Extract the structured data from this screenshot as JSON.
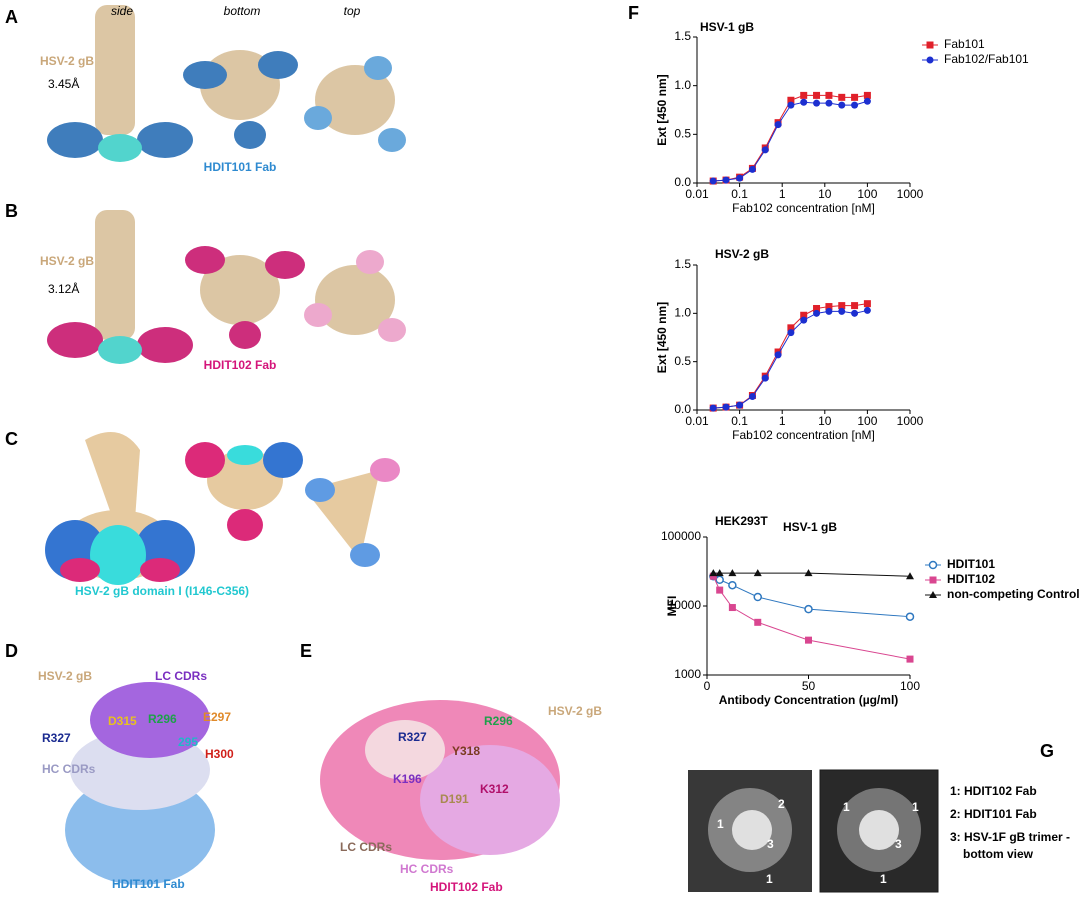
{
  "panels": {
    "A": {
      "label": "A",
      "views": [
        "side",
        "bottom",
        "top"
      ],
      "protein": "HSV-2 gB",
      "resolution": "3.45Å",
      "fab": "HDIT101 Fab"
    },
    "B": {
      "label": "B",
      "protein": "HSV-2 gB",
      "resolution": "3.12Å",
      "fab": "HDIT102 Fab"
    },
    "C": {
      "label": "C",
      "domain": "HSV-2 gB domain I (I146-C356)"
    },
    "D": {
      "label": "D",
      "texts": [
        "HSV-2 gB",
        "LC CDRs",
        "R296",
        "E297",
        "R327",
        "D315",
        "H300",
        "HC CDRs",
        "295",
        "HDIT101 Fab"
      ]
    },
    "E": {
      "label": "E",
      "texts": [
        "R296",
        "HSV-2 gB",
        "R327",
        "Y318",
        "K196",
        "K312",
        "D191",
        "LC CDRs",
        "HC CDRs",
        "HDIT102 Fab"
      ]
    },
    "F": {
      "label": "F"
    },
    "G": {
      "label": "G",
      "image1": [
        "1",
        "2",
        "3",
        "1"
      ],
      "image2": [
        "1",
        "1",
        "3",
        "1"
      ],
      "legend": [
        "1: HDIT102 Fab",
        "2: HDIT101 Fab",
        "3: HSV-1F gB trimer -",
        "bottom view"
      ]
    }
  },
  "chart_data": [
    {
      "type": "line",
      "title": "HSV-1 gB",
      "x_label": "Fab102 concentration [nM]",
      "y_label": "Ext [450 nm]",
      "xlog": true,
      "x": [
        0.024,
        0.048,
        0.1,
        0.2,
        0.4,
        0.8,
        1.6,
        3.2,
        6.4,
        12.5,
        25,
        50,
        100
      ],
      "series": [
        {
          "name": "Fab101",
          "color": "#e0202a",
          "marker": "square",
          "values": [
            0.02,
            0.03,
            0.06,
            0.15,
            0.36,
            0.62,
            0.85,
            0.9,
            0.9,
            0.9,
            0.88,
            0.88,
            0.9
          ]
        },
        {
          "name": "Fab102/Fab101",
          "color": "#1c2fd0",
          "marker": "circle",
          "values": [
            0.02,
            0.03,
            0.05,
            0.14,
            0.34,
            0.6,
            0.8,
            0.83,
            0.82,
            0.82,
            0.8,
            0.8,
            0.84
          ]
        }
      ],
      "xlim": [
        0.01,
        1000
      ],
      "xticks": [
        0.01,
        0.1,
        1,
        10,
        100,
        1000
      ],
      "ylim": [
        0,
        1.5
      ],
      "yticks": [
        {
          "value": 0,
          "label": "0.0"
        },
        0.5,
        {
          "value": 1,
          "label": "1.0"
        },
        1.5
      ]
    },
    {
      "type": "line",
      "title": "HSV-2 gB",
      "x_label": "Fab102 concentration [nM]",
      "y_label": "Ext [450 nm]",
      "xlog": true,
      "x": [
        0.024,
        0.048,
        0.1,
        0.2,
        0.4,
        0.8,
        1.6,
        3.2,
        6.4,
        12.5,
        25,
        50,
        100
      ],
      "series": [
        {
          "name": "Fab101",
          "color": "#e0202a",
          "marker": "square",
          "values": [
            0.02,
            0.03,
            0.05,
            0.15,
            0.35,
            0.6,
            0.85,
            0.98,
            1.05,
            1.07,
            1.08,
            1.08,
            1.1
          ]
        },
        {
          "name": "Fab102/Fab101",
          "color": "#1c2fd0",
          "marker": "circle",
          "values": [
            0.02,
            0.03,
            0.05,
            0.14,
            0.33,
            0.57,
            0.8,
            0.93,
            1.0,
            1.02,
            1.02,
            1.0,
            1.03
          ]
        }
      ],
      "xlim": [
        0.01,
        1000
      ],
      "xticks": [
        0.01,
        0.1,
        1,
        10,
        100,
        1000
      ],
      "ylim": [
        0,
        1.5
      ],
      "yticks": [
        {
          "value": 0,
          "label": "0.0"
        },
        0.5,
        {
          "value": 1,
          "label": "1.0"
        },
        1.5
      ]
    },
    {
      "type": "line",
      "title": "HEK293T",
      "subtitle": "HSV-1 gB",
      "x_label": "Antibody Concentration (µg/ml)",
      "y_label": "MFI",
      "ylog": true,
      "x": [
        3.125,
        6.25,
        12.5,
        25,
        50,
        100
      ],
      "series": [
        {
          "name": "HDIT101",
          "color": "#2f78c0",
          "marker": "open-circle",
          "values": [
            27000,
            24000,
            20000,
            13500,
            9000,
            7000
          ]
        },
        {
          "name": "HDIT102",
          "color": "#d94690",
          "marker": "square",
          "values": [
            27000,
            17000,
            9500,
            5800,
            3200,
            1700
          ]
        },
        {
          "name": "non-competing Control Ab",
          "color": "#111111",
          "marker": "triangle",
          "values": [
            30000,
            30000,
            30000,
            30000,
            30000,
            27000
          ]
        }
      ],
      "xlim": [
        0,
        100
      ],
      "xticks": [
        0,
        50,
        100
      ],
      "ylim": [
        1000,
        100000
      ],
      "yticks": [
        1000,
        10000,
        100000
      ]
    }
  ]
}
